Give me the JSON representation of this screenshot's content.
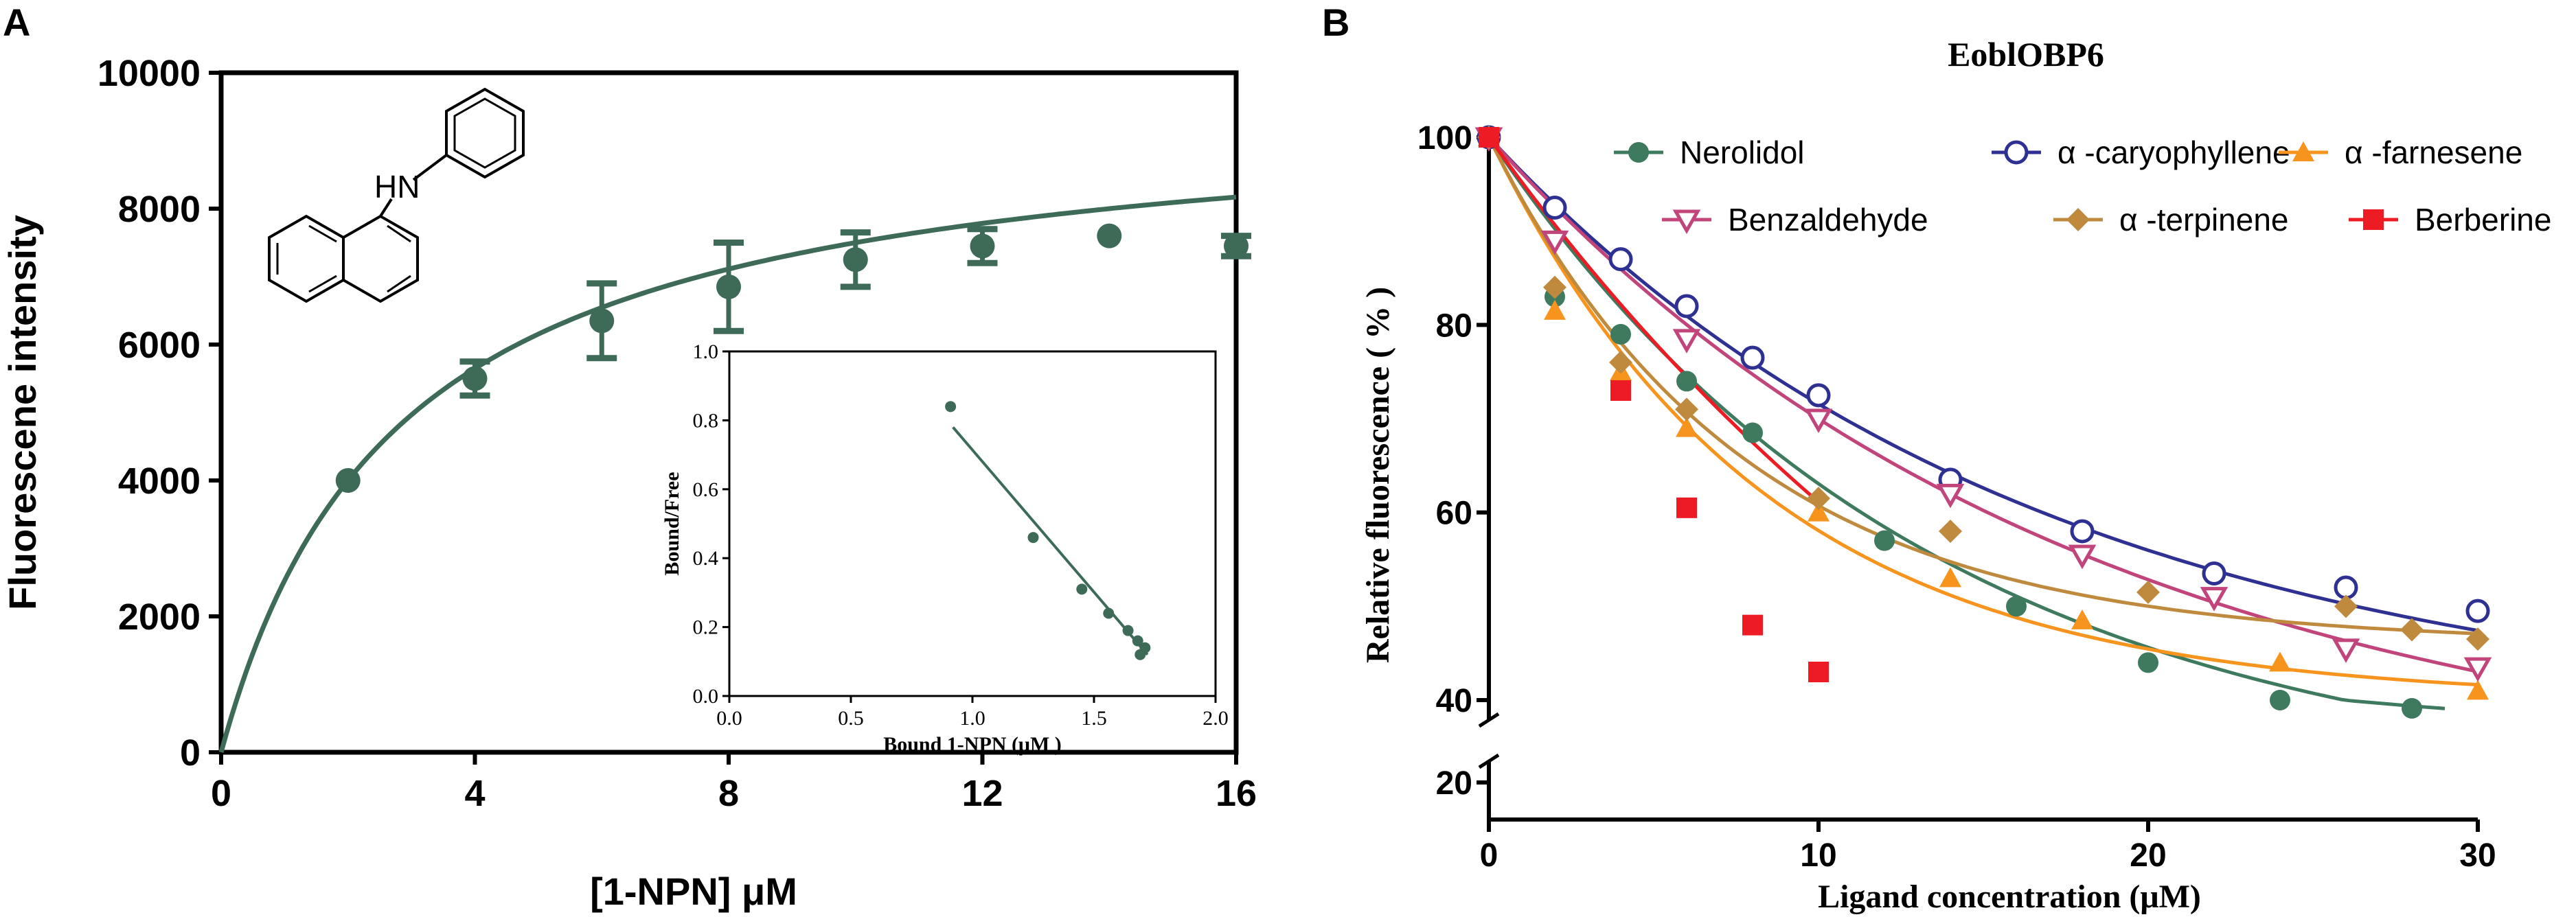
{
  "chart_data": [
    {
      "panel": "A",
      "type": "line",
      "title": "",
      "xlabel": "[1-NPN] μM",
      "ylabel": "Fluorescene intensity",
      "xlim": [
        0,
        16
      ],
      "ylim": [
        0,
        10000
      ],
      "xticks": [
        0,
        4,
        8,
        12,
        16
      ],
      "yticks": [
        0,
        2000,
        4000,
        6000,
        8000,
        10000
      ],
      "grid": false,
      "molecule_label": "HN",
      "fit_curve": {
        "model": "one-site binding",
        "bmax": 9600,
        "kd": 2.8
      },
      "series": [
        {
          "name": "1-NPN",
          "color": "#3d6b58",
          "points": [
            {
              "x": 2,
              "y": 4000,
              "err": 0
            },
            {
              "x": 4,
              "y": 5500,
              "err": 250
            },
            {
              "x": 6,
              "y": 6350,
              "err": 550
            },
            {
              "x": 8,
              "y": 6850,
              "err": 650
            },
            {
              "x": 10,
              "y": 7250,
              "err": 400
            },
            {
              "x": 12,
              "y": 7450,
              "err": 250
            },
            {
              "x": 14,
              "y": 7600,
              "err": 0
            },
            {
              "x": 16,
              "y": 7450,
              "err": 150
            }
          ]
        }
      ],
      "inset": {
        "type": "scatter",
        "xlabel": "Bound 1-NPN (μM )",
        "ylabel": "Bound/Free",
        "xlim": [
          0,
          2
        ],
        "ylim": [
          0,
          1
        ],
        "xticks": [
          "0.0",
          "0.5",
          "1.0",
          "1.5",
          "2.0"
        ],
        "yticks": [
          "0.0",
          "0.2",
          "0.4",
          "0.6",
          "0.8",
          "1.0"
        ],
        "points": [
          {
            "x": 0.91,
            "y": 0.84
          },
          {
            "x": 1.25,
            "y": 0.46
          },
          {
            "x": 1.45,
            "y": 0.31
          },
          {
            "x": 1.56,
            "y": 0.24
          },
          {
            "x": 1.64,
            "y": 0.19
          },
          {
            "x": 1.68,
            "y": 0.16
          },
          {
            "x": 1.71,
            "y": 0.14
          },
          {
            "x": 1.69,
            "y": 0.12
          }
        ],
        "fit_line": {
          "x1": 0.92,
          "y1": 0.78,
          "x2": 1.72,
          "y2": 0.12
        }
      }
    },
    {
      "panel": "B",
      "type": "line",
      "title": "EoblOBP6",
      "xlabel": "Ligand concentration (μM)",
      "ylabel": "Relative fluorescence ( % )",
      "xlim": [
        0,
        30
      ],
      "ylim": [
        20,
        100
      ],
      "axis_break": [
        20,
        40
      ],
      "xticks": [
        0,
        10,
        20,
        30
      ],
      "yticks": [
        20,
        40,
        60,
        80,
        100
      ],
      "grid": false,
      "legend_position": "top-right",
      "series": [
        {
          "name": "Nerolidol",
          "color": "#3d7a5e",
          "marker": "circle",
          "x": [
            0,
            2,
            4,
            6,
            8,
            12,
            16,
            20,
            24,
            28
          ],
          "values": [
            100,
            83,
            79,
            74,
            68.5,
            57,
            50,
            44,
            40,
            38
          ],
          "fit": {
            "a": 70,
            "k": 0.075,
            "c": 30,
            "xmax": 29
          }
        },
        {
          "name": "α -caryophyllene",
          "color": "#2e3192",
          "marker": "open-circle",
          "x": [
            0,
            2,
            4,
            6,
            8,
            10,
            14,
            18,
            22,
            26,
            30
          ],
          "values": [
            100,
            92.5,
            87,
            82,
            76.5,
            72.5,
            63.5,
            58,
            53.5,
            52,
            49.5
          ],
          "fit": {
            "a": 63,
            "k": 0.06,
            "c": 37,
            "xmax": 30
          }
        },
        {
          "name": "α -farnesene",
          "color": "#f7941d",
          "marker": "triangle",
          "x": [
            0,
            2,
            4,
            6,
            10,
            14,
            18,
            24,
            30
          ],
          "values": [
            100,
            81.5,
            75,
            69,
            60,
            53,
            48.5,
            44,
            41
          ],
          "fit": {
            "a": 60,
            "k": 0.12,
            "c": 40,
            "xmax": 30
          }
        },
        {
          "name": "Benzaldehyde",
          "color": "#c1447a",
          "marker": "open-triangle-down",
          "x": [
            0,
            2,
            6,
            10,
            14,
            18,
            22,
            26,
            30
          ],
          "values": [
            100,
            89,
            78.5,
            70,
            62,
            55.5,
            51,
            45.5,
            43.5
          ],
          "fit": {
            "a": 70,
            "k": 0.056,
            "c": 30,
            "xmax": 30
          }
        },
        {
          "name": "α -terpinene",
          "color": "#c08a3e",
          "marker": "diamond",
          "x": [
            0,
            2,
            4,
            6,
            10,
            14,
            20,
            26,
            28,
            30
          ],
          "values": [
            100,
            84,
            76,
            71,
            61.5,
            58,
            51.5,
            50,
            47.5,
            46.5
          ],
          "fit": {
            "a": 54,
            "k": 0.13,
            "c": 46,
            "xmax": 30
          }
        },
        {
          "name": "Berberine",
          "color": "#ed1c24",
          "marker": "square",
          "x": [
            0,
            4,
            6,
            8,
            10
          ],
          "values": [
            100,
            73,
            60.5,
            48,
            43
          ],
          "fit": {
            "a": 102,
            "k": 0.048,
            "c": -2,
            "xmax": 10
          }
        }
      ]
    }
  ],
  "panel_labels": {
    "a": "A",
    "b": "B"
  }
}
